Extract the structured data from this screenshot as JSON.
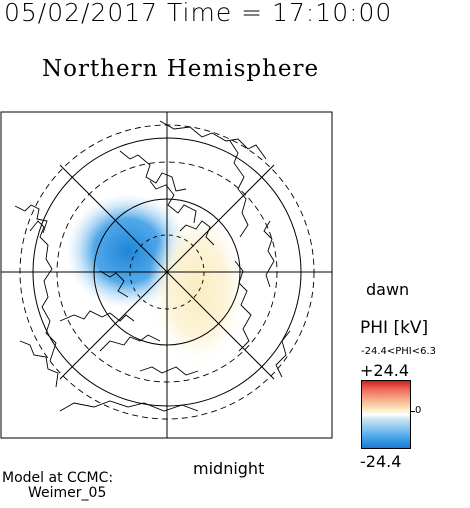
{
  "header": {
    "timestamp": "05/02/2017 Time = 17:10:00",
    "title": "Northern Hemisphere"
  },
  "plot": {
    "top_label": "",
    "right_label": "dawn",
    "bottom_label": "midnight"
  },
  "colorbar": {
    "label": "PHI [kV]",
    "range_text": "-24.4<PHI<6.3",
    "max_label": "+24.4",
    "zero_label": "0",
    "min_label": "-24.4",
    "colors": {
      "positive_max": "#cc2222",
      "zero": "#ffffff",
      "negative_max": "#1f78d2"
    }
  },
  "model": {
    "line1": "Model at CCMC:",
    "line2": "Weimer_05"
  }
}
